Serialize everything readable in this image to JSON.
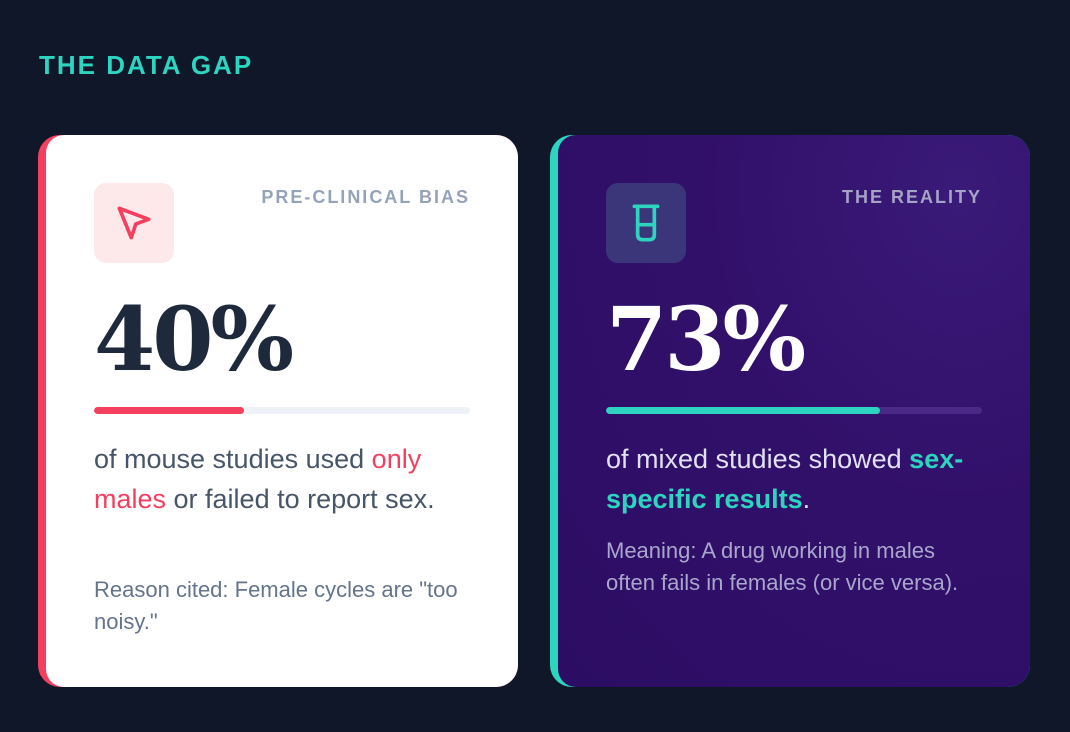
{
  "page": {
    "title": "THE DATA GAP"
  },
  "colors": {
    "background": "#0f1729",
    "accent_teal": "#2dd4bf",
    "accent_pink": "#f43f5e"
  },
  "cards": [
    {
      "tag": "PRE-CLINICAL BIAS",
      "icon": "cursor-arrow-icon",
      "big_number": "40%",
      "progress": 0.4,
      "statement_pre": "of mouse studies used ",
      "statement_highlight": "only males",
      "statement_post": " or failed to report sex.",
      "note": "Reason cited: Female cycles are \"too noisy.\""
    },
    {
      "tag": "THE REALITY",
      "icon": "beaker-icon",
      "big_number": "73%",
      "progress": 0.73,
      "statement_pre": "of mixed studies showed ",
      "statement_highlight": "sex-specific results",
      "statement_post": ".",
      "note": "Meaning: A drug working in males often fails in females (or vice versa)."
    }
  ]
}
